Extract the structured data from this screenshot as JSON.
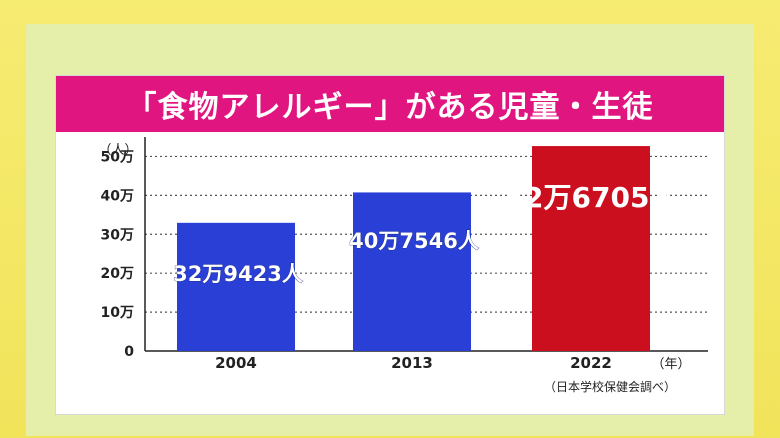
{
  "chart_data": {
    "type": "bar",
    "title": "「食物アレルギー」がある児童・生徒",
    "categories": [
      "2004",
      "2013",
      "2022"
    ],
    "values": [
      329423,
      407546,
      526705
    ],
    "data_labels": [
      "32万9423人",
      "40万7546人",
      "52万6705人"
    ],
    "yticks": [
      0,
      100000,
      200000,
      300000,
      400000,
      500000
    ],
    "ytick_labels": [
      "0",
      "10万",
      "20万",
      "30万",
      "40万",
      "50万"
    ],
    "ylabel": "（人）",
    "xlabel": "（年）",
    "ylim": [
      0,
      550000
    ],
    "grid": "dotted horizontal",
    "colors": [
      "#2a3fd6",
      "#2a3fd6",
      "#cc0f1f"
    ],
    "label_colors": [
      "#ffffff",
      "#ffffff",
      "#ffffff"
    ],
    "source": "（日本学校保健会調べ）"
  }
}
